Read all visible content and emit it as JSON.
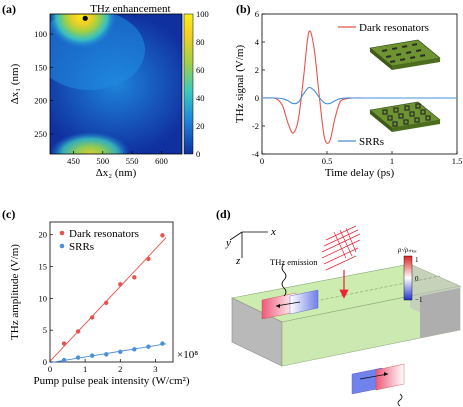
{
  "panels": {
    "a": {
      "label": "(a)"
    },
    "b": {
      "label": "(b)"
    },
    "c": {
      "label": "(c)"
    },
    "d": {
      "label": "(d)"
    }
  },
  "colors": {
    "red": "#e8534b",
    "blue": "#4a8fd8",
    "pcb_green": "#5a7d2a",
    "slab_green": "#d7f0b8"
  },
  "chart_data": [
    {
      "panel": "a",
      "type": "heatmap",
      "title": "",
      "annotation": "THz enhancement",
      "marker_point": {
        "x": 470,
        "y": 72
      },
      "xlabel": "Δx₂ (nm)",
      "ylabel": "Δx₁ (nm)",
      "xlim": [
        410,
        635
      ],
      "ylim": [
        70,
        280
      ],
      "y_inverted": true,
      "xticks": [
        450,
        500,
        550,
        600
      ],
      "yticks": [
        100,
        150,
        200,
        250
      ],
      "colorbar": {
        "min": 0,
        "max": 100,
        "ticks": [
          0,
          20,
          40,
          60,
          80,
          100
        ],
        "colormap": "jet"
      },
      "hotspots": [
        {
          "x": 470,
          "y": 72,
          "value": 100
        },
        {
          "x": 480,
          "y": 278,
          "value": 55
        }
      ]
    },
    {
      "panel": "b",
      "type": "line",
      "xlabel": "Time delay (ps)",
      "ylabel": "THz signal (V/m)",
      "xlim": [
        0,
        1.5
      ],
      "ylim": [
        -4,
        6
      ],
      "xticks": [
        0,
        0.5,
        1,
        1.5
      ],
      "yticks": [
        -4,
        -2,
        0,
        2,
        4,
        6
      ],
      "series": [
        {
          "name": "Dark resonators",
          "color": "#e8534b",
          "x": [
            0,
            0.08,
            0.12,
            0.16,
            0.2,
            0.24,
            0.28,
            0.32,
            0.36,
            0.4,
            0.44,
            0.48,
            0.52,
            0.56,
            0.6,
            0.65,
            0.7,
            0.8,
            1.0,
            1.5
          ],
          "y": [
            0,
            0,
            -0.1,
            -0.6,
            -1.8,
            -2.5,
            -1.5,
            1.5,
            4.7,
            3.6,
            0.2,
            -2.8,
            -3.1,
            -1.5,
            -0.3,
            -0.05,
            0,
            0,
            0,
            0
          ]
        },
        {
          "name": "SRRs",
          "color": "#4a8fd8",
          "x": [
            0,
            0.1,
            0.16,
            0.2,
            0.24,
            0.28,
            0.32,
            0.36,
            0.4,
            0.44,
            0.48,
            0.52,
            0.56,
            0.6,
            0.65,
            0.7,
            0.8,
            1.5
          ],
          "y": [
            0,
            0,
            -0.05,
            -0.2,
            -0.4,
            -0.3,
            0.3,
            0.75,
            0.55,
            0.05,
            -0.35,
            -0.4,
            -0.2,
            -0.05,
            0,
            0,
            0,
            0
          ]
        }
      ]
    },
    {
      "panel": "c",
      "type": "scatter",
      "xlabel": "Pump pulse peak intensity (W/cm²)",
      "ylabel": "THz amplitude (V/m)",
      "x_multiplier": "×10⁸",
      "xlim": [
        0,
        3.5
      ],
      "ylim": [
        0,
        22
      ],
      "xticks": [
        0,
        1,
        2,
        3
      ],
      "yticks": [
        0,
        5,
        10,
        15,
        20
      ],
      "series": [
        {
          "name": "Dark resonators",
          "color": "#e8534b",
          "x": [
            0.4,
            0.8,
            1.2,
            1.6,
            2.0,
            2.4,
            2.8,
            3.2
          ],
          "y": [
            2.9,
            4.8,
            7.0,
            9.3,
            12.2,
            13.3,
            16.2,
            19.9
          ]
        },
        {
          "name": "SRRs",
          "color": "#4a8fd8",
          "x": [
            0.4,
            0.8,
            1.2,
            1.6,
            2.0,
            2.4,
            2.8,
            3.2
          ],
          "y": [
            0.3,
            0.7,
            1.0,
            1.2,
            1.6,
            2.0,
            2.4,
            2.9
          ]
        }
      ],
      "fit_lines": true
    }
  ],
  "panel_d": {
    "axis_labels": {
      "y": "y",
      "x": "x",
      "z": "z"
    },
    "emission_label": "THz emission",
    "colorbar_label": "ρ·/ρₘₐₓ",
    "colorbar_ticks": [
      "1",
      "0",
      "−1"
    ]
  }
}
